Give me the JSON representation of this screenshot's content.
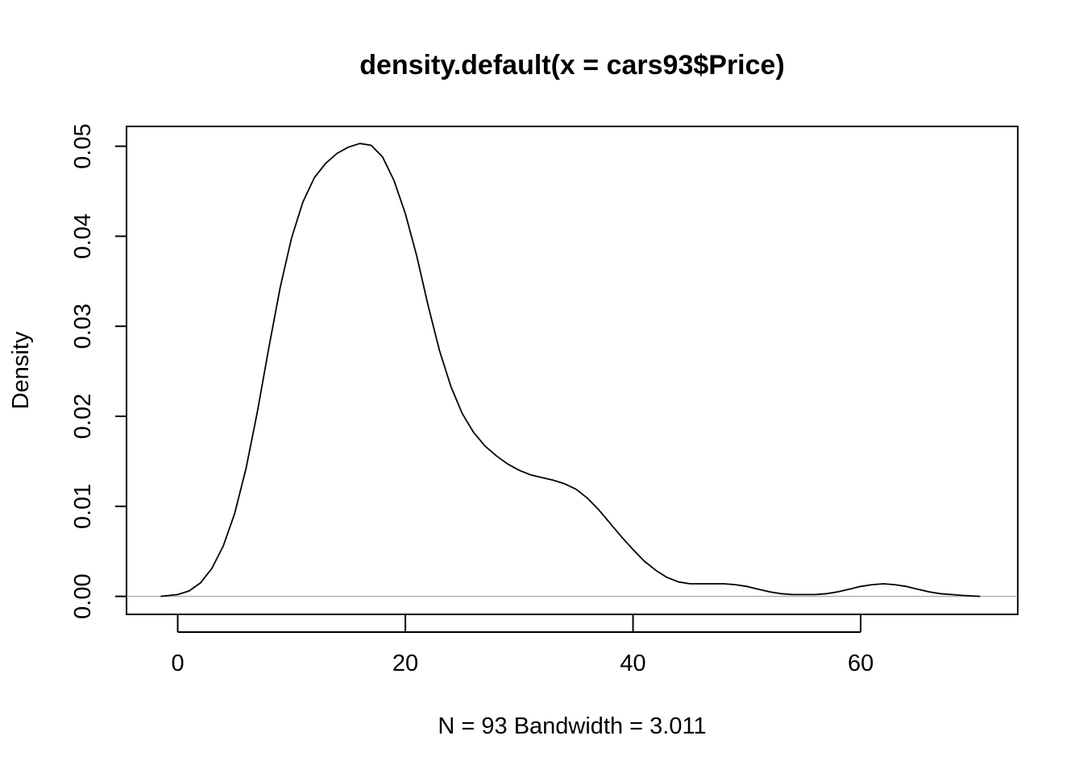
{
  "chart_data": {
    "type": "line",
    "title": "density.default(x = cars93$Price)",
    "xlabel": "N = 93   Bandwidth = 3.011",
    "ylabel": "Density",
    "xlim": [
      -4.5,
      73.8
    ],
    "ylim": [
      -0.002,
      0.0522
    ],
    "x_ticks": [
      0,
      20,
      40,
      60
    ],
    "x_tick_labels": [
      "0",
      "20",
      "40",
      "60"
    ],
    "y_ticks": [
      0,
      0.01,
      0.02,
      0.03,
      0.04,
      0.05
    ],
    "y_tick_labels": [
      "0.00",
      "0.01",
      "0.02",
      "0.03",
      "0.04",
      "0.05"
    ],
    "grid": false,
    "baseline": 0,
    "series": [
      {
        "x": [
          -1.5,
          0,
          1,
          2,
          3,
          4,
          5,
          6,
          7,
          8,
          9,
          10,
          11,
          12,
          13,
          14,
          15,
          16,
          17,
          18,
          19,
          20,
          21,
          22,
          23,
          24,
          25,
          26,
          27,
          28,
          29,
          30,
          31,
          32,
          33,
          34,
          35,
          36,
          37,
          38,
          39,
          40,
          41,
          42,
          43,
          44,
          45,
          46,
          47,
          48,
          49,
          50,
          51,
          52,
          53,
          54,
          55,
          56,
          57,
          58,
          59,
          60,
          61,
          62,
          63,
          64,
          65,
          66,
          67,
          68,
          69,
          70.5
        ],
        "y": [
          0.0,
          0.0002,
          0.0006,
          0.0015,
          0.0031,
          0.0056,
          0.0092,
          0.0142,
          0.0205,
          0.0276,
          0.0343,
          0.0398,
          0.0438,
          0.0465,
          0.0481,
          0.0492,
          0.0499,
          0.0503,
          0.0501,
          0.0488,
          0.0462,
          0.0425,
          0.0378,
          0.0323,
          0.0273,
          0.0233,
          0.0203,
          0.0182,
          0.0167,
          0.0156,
          0.0147,
          0.014,
          0.0135,
          0.0132,
          0.0129,
          0.0125,
          0.0119,
          0.0109,
          0.0096,
          0.0081,
          0.0066,
          0.0052,
          0.0039,
          0.0029,
          0.0021,
          0.0016,
          0.0014,
          0.0014,
          0.0014,
          0.0014,
          0.0013,
          0.0011,
          0.0008,
          0.0005,
          0.0003,
          0.0002,
          0.0002,
          0.0002,
          0.0003,
          0.0005,
          0.0008,
          0.0011,
          0.0013,
          0.0014,
          0.0013,
          0.0011,
          0.0008,
          0.0005,
          0.0003,
          0.0002,
          0.0001,
          0.0
        ]
      }
    ]
  }
}
